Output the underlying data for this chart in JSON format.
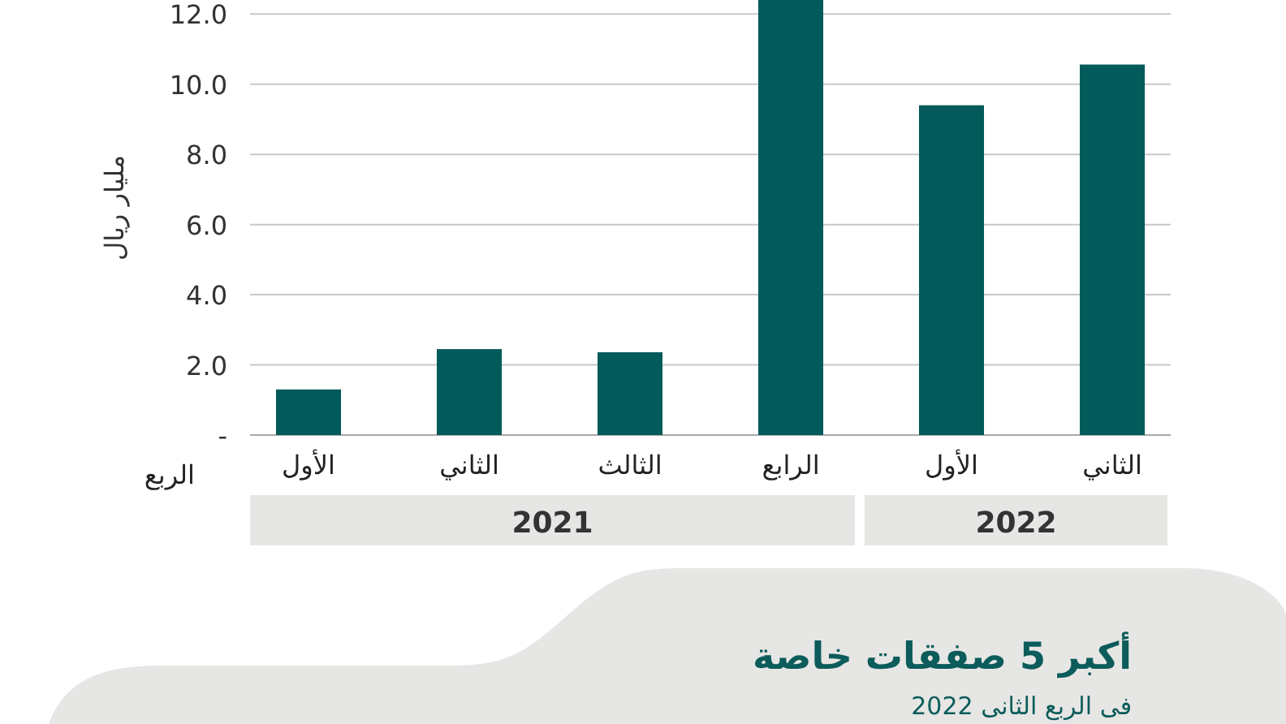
{
  "chart_data": {
    "type": "bar",
    "title": "أكبر 5 صفقات خاصة",
    "subtitle": "فى الربع الثانى 2022",
    "xlabel": "الربع",
    "ylabel": "مليار ريال",
    "categories": [
      "الأول",
      "الثاني",
      "الثالث",
      "الرابع",
      "الأول",
      "الثاني"
    ],
    "values": [
      1.3,
      2.45,
      2.36,
      12.4,
      9.4,
      10.56
    ],
    "color": "#035a5a",
    "ylim": [
      0,
      12.4
    ],
    "yticks": [
      {
        "value": 0,
        "label": "-"
      },
      {
        "value": 2,
        "label": "2.0"
      },
      {
        "value": 4,
        "label": "4.0"
      },
      {
        "value": 6,
        "label": "6.0"
      },
      {
        "value": 8,
        "label": "8.0"
      },
      {
        "value": 10,
        "label": "10.0"
      },
      {
        "value": 12,
        "label": "12.0"
      }
    ],
    "grid": "y",
    "annotations": [
      "2021",
      "2022"
    ]
  }
}
